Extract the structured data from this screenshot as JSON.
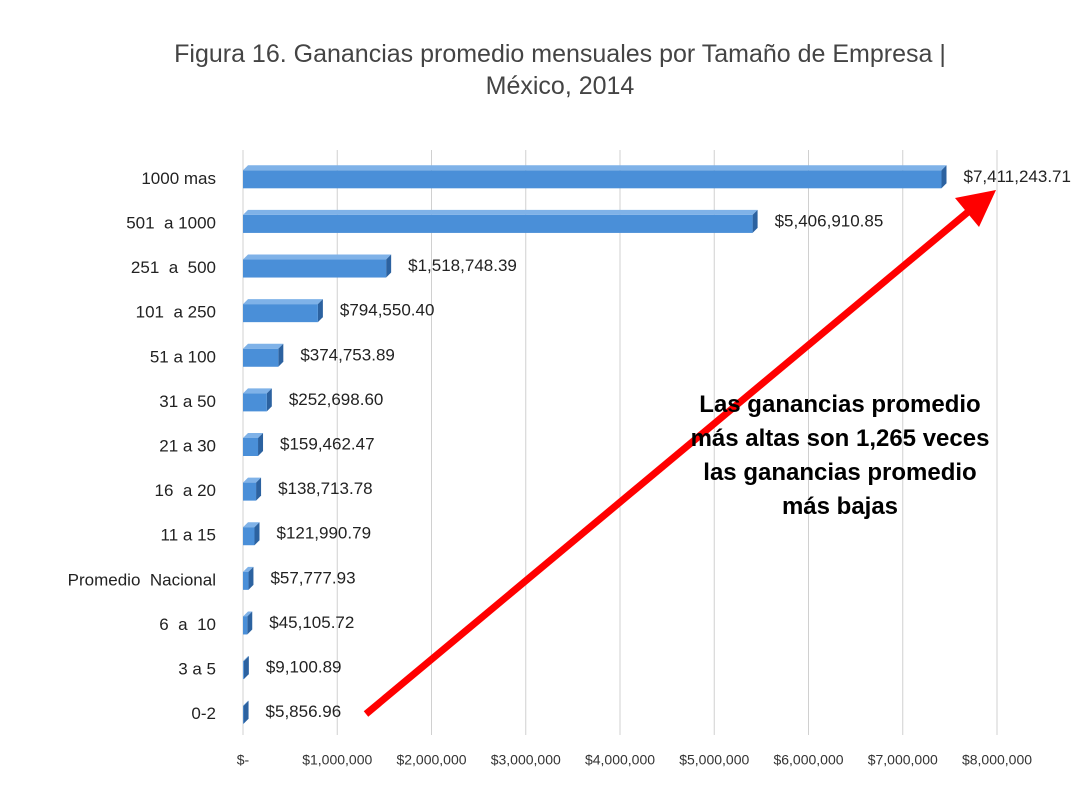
{
  "chart_data": {
    "type": "bar",
    "orientation": "horizontal",
    "title": "Figura 16. Ganancias promedio mensuales por Tamaño de Empresa | México, 2014",
    "categories": [
      "1000 mas",
      "501  a 1000",
      "251  a  500",
      "101  a 250",
      "51 a 100",
      "31 a 50",
      "21 a 30",
      "16  a 20",
      "11 a 15",
      "Promedio  Nacional",
      "6  a  10",
      "3 a 5",
      "0-2"
    ],
    "values": [
      7411243.71,
      5406910.85,
      1518748.39,
      794550.4,
      374753.89,
      252698.6,
      159462.47,
      138713.78,
      121990.79,
      57777.93,
      45105.72,
      9100.89,
      5856.96
    ],
    "value_labels": [
      "$7,411,243.71",
      "$5,406,910.85",
      "$1,518,748.39",
      "$794,550.40",
      "$374,753.89",
      "$252,698.60",
      "$159,462.47",
      "$138,713.78",
      "$121,990.79",
      "$57,777.93",
      "$45,105.72",
      "$9,100.89",
      "$5,856.96"
    ],
    "color": "#4a8fd8",
    "xlim": [
      0,
      8000000
    ],
    "xticks": [
      {
        "value": 0,
        "label": "$-"
      },
      {
        "value": 1000000,
        "label": "$1,000,000"
      },
      {
        "value": 2000000,
        "label": "$2,000,000"
      },
      {
        "value": 3000000,
        "label": "$3,000,000"
      },
      {
        "value": 4000000,
        "label": "$4,000,000"
      },
      {
        "value": 5000000,
        "label": "$5,000,000"
      },
      {
        "value": 6000000,
        "label": "$6,000,000"
      },
      {
        "value": 7000000,
        "label": "$7,000,000"
      },
      {
        "value": 8000000,
        "label": "$8,000,000"
      }
    ],
    "grid": true,
    "annotation": "Las ganancias promedio más altas son 1,265 veces las ganancias promedio más bajas"
  }
}
